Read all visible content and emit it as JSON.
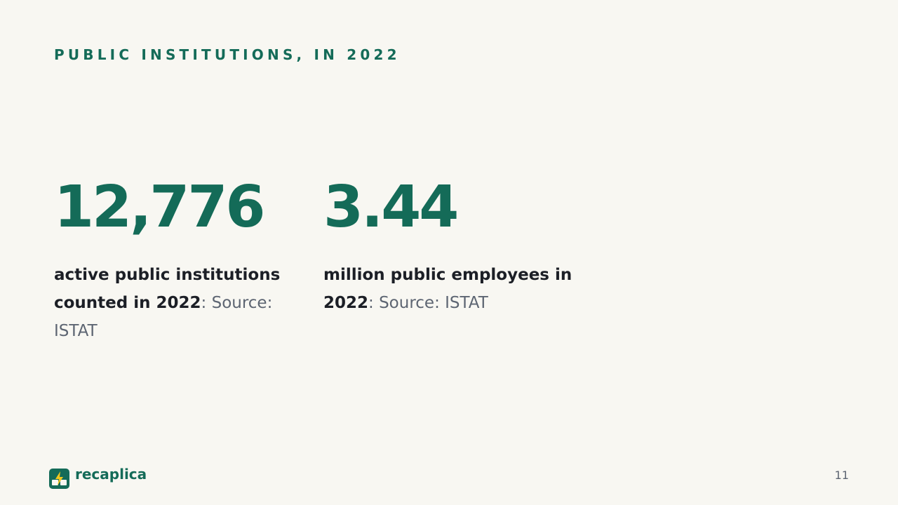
{
  "header": {
    "title": "PUBLIC INSTITUTIONS, IN 2022"
  },
  "stats": [
    {
      "value": "12,776",
      "description": "active public institutions counted in 2022",
      "source": ": Source: ISTAT"
    },
    {
      "value": "3.44",
      "description": "million public employees in 2022",
      "source": ": Source: ISTAT"
    }
  ],
  "footer": {
    "brand": "recaplica",
    "page_number": 11
  }
}
